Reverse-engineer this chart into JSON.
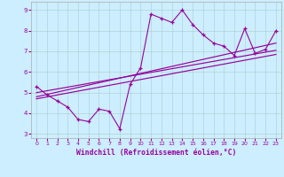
{
  "xlabel": "Windchill (Refroidissement éolien,°C)",
  "bg_color": "#cceeff",
  "line_color": "#990099",
  "xlim_min": -0.5,
  "xlim_max": 23.5,
  "ylim_min": 2.8,
  "ylim_max": 9.4,
  "xticks": [
    0,
    1,
    2,
    3,
    4,
    5,
    6,
    7,
    8,
    9,
    10,
    11,
    12,
    13,
    14,
    15,
    16,
    17,
    18,
    19,
    20,
    21,
    22,
    23
  ],
  "yticks": [
    3,
    4,
    5,
    6,
    7,
    8,
    9
  ],
  "data_x": [
    0,
    1,
    2,
    3,
    4,
    5,
    6,
    7,
    8,
    9,
    10,
    11,
    12,
    13,
    14,
    15,
    16,
    17,
    18,
    19,
    20,
    21,
    22,
    23
  ],
  "data_y": [
    5.3,
    4.9,
    4.6,
    4.3,
    3.7,
    3.6,
    4.2,
    4.1,
    3.25,
    5.4,
    6.2,
    8.8,
    8.6,
    8.4,
    9.0,
    8.3,
    7.8,
    7.4,
    7.25,
    6.8,
    8.1,
    6.9,
    7.1,
    8.0
  ],
  "trend1": {
    "x": [
      0,
      23
    ],
    "y": [
      5.0,
      7.05
    ]
  },
  "trend2": {
    "x": [
      0,
      23
    ],
    "y": [
      4.8,
      7.4
    ]
  },
  "trend3": {
    "x": [
      0,
      23
    ],
    "y": [
      4.7,
      6.85
    ]
  }
}
